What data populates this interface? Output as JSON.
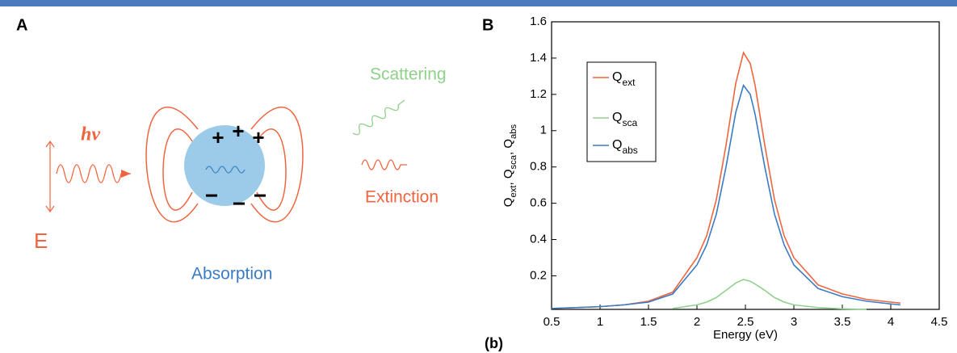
{
  "panel_a": {
    "label": "A",
    "photon": "hν",
    "field": "E",
    "scattering": "Scattering",
    "extinction": "Extinction",
    "absorption": "Absorption",
    "plus_signs": [
      "+",
      "+",
      "+"
    ],
    "minus_signs": [
      "−",
      "−",
      "−"
    ]
  },
  "chart_data": {
    "type": "line",
    "panel_label": "B",
    "caption": "(b)",
    "x_label": "Energy (eV)",
    "y_label": "Qext, Qsca, Qabs",
    "x": [
      0.5,
      0.75,
      1,
      1.25,
      1.5,
      1.75,
      2,
      2.1,
      2.2,
      2.3,
      2.4,
      2.48,
      2.55,
      2.6,
      2.7,
      2.8,
      2.9,
      3,
      3.25,
      3.5,
      3.75,
      4,
      4.1
    ],
    "series": [
      {
        "name": "Qext",
        "color": "#f0653f",
        "values": [
          0.02,
          0.025,
          0.03,
          0.04,
          0.06,
          0.11,
          0.3,
          0.42,
          0.62,
          0.92,
          1.26,
          1.43,
          1.37,
          1.25,
          0.92,
          0.62,
          0.42,
          0.3,
          0.15,
          0.1,
          0.07,
          0.055,
          0.05
        ]
      },
      {
        "name": "Qsca",
        "color": "#8fd18a",
        "values": [
          null,
          null,
          null,
          null,
          null,
          0.02,
          0.04,
          0.055,
          0.08,
          0.12,
          0.16,
          0.18,
          0.17,
          0.155,
          0.12,
          0.08,
          0.055,
          0.04,
          0.025,
          0.018,
          0.015,
          null,
          null
        ]
      },
      {
        "name": "Qabs",
        "color": "#3a7cc4",
        "values": [
          0.02,
          0.025,
          0.03,
          0.04,
          0.055,
          0.1,
          0.26,
          0.37,
          0.54,
          0.8,
          1.1,
          1.25,
          1.2,
          1.09,
          0.8,
          0.54,
          0.37,
          0.26,
          0.13,
          0.085,
          0.06,
          0.045,
          0.04
        ]
      }
    ],
    "xlim": [
      0.5,
      4.5
    ],
    "xticks": [
      0.5,
      1,
      1.5,
      2,
      2.5,
      3,
      3.5,
      4,
      4.5
    ],
    "ylim": [
      0.015,
      1.6
    ],
    "yticks": [
      0.2,
      0.4,
      0.6,
      0.8,
      1,
      1.2,
      1.4,
      1.6
    ],
    "legend": "upper left"
  }
}
